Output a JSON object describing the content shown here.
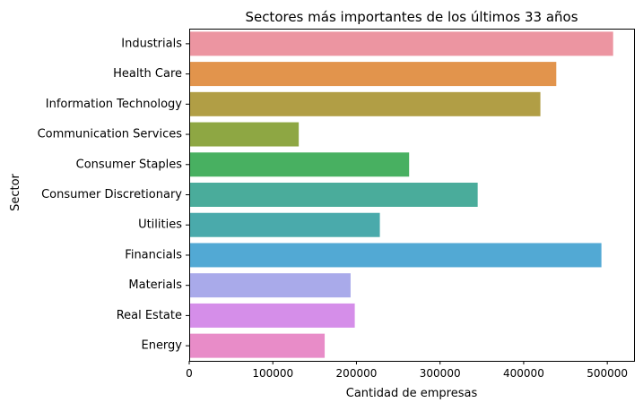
{
  "chart_data": {
    "type": "bar",
    "orientation": "horizontal",
    "title": "Sectores más importantes de los últimos 33 años",
    "xlabel": "Cantidad de empresas",
    "ylabel": "Sector",
    "categories": [
      "Industrials",
      "Health Care",
      "Information Technology",
      "Communication Services",
      "Consumer Staples",
      "Consumer Discretionary",
      "Utilities",
      "Financials",
      "Materials",
      "Real Estate",
      "Energy"
    ],
    "values": [
      507000,
      439000,
      420000,
      131000,
      263000,
      345000,
      228000,
      493000,
      193000,
      198000,
      162000
    ],
    "colors": [
      "#ec95a1",
      "#e2944c",
      "#b19e45",
      "#8ea743",
      "#48b061",
      "#4aac9b",
      "#4aaaab",
      "#52a9d4",
      "#a9aaea",
      "#d58ee9",
      "#e88cc8"
    ],
    "xlim": [
      0,
      532000
    ],
    "xticks": [
      0,
      100000,
      200000,
      300000,
      400000,
      500000
    ],
    "xtick_labels": [
      "0",
      "100000",
      "200000",
      "300000",
      "400000",
      "500000"
    ],
    "grid": false,
    "legend": "none"
  }
}
